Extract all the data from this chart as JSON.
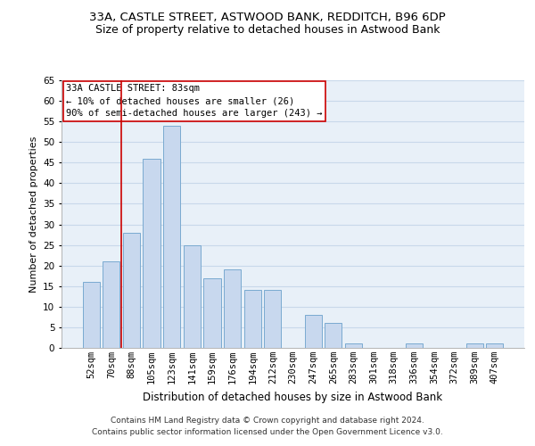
{
  "title1": "33A, CASTLE STREET, ASTWOOD BANK, REDDITCH, B96 6DP",
  "title2": "Size of property relative to detached houses in Astwood Bank",
  "xlabel": "Distribution of detached houses by size in Astwood Bank",
  "ylabel": "Number of detached properties",
  "categories": [
    "52sqm",
    "70sqm",
    "88sqm",
    "105sqm",
    "123sqm",
    "141sqm",
    "159sqm",
    "176sqm",
    "194sqm",
    "212sqm",
    "230sqm",
    "247sqm",
    "265sqm",
    "283sqm",
    "301sqm",
    "318sqm",
    "336sqm",
    "354sqm",
    "372sqm",
    "389sqm",
    "407sqm"
  ],
  "values": [
    16,
    21,
    28,
    46,
    54,
    25,
    17,
    19,
    14,
    14,
    0,
    8,
    6,
    1,
    0,
    0,
    1,
    0,
    0,
    1,
    1
  ],
  "bar_color": "#c8d8ee",
  "bar_edge_color": "#7aaad0",
  "bar_edge_width": 0.7,
  "annotation_line1": "33A CASTLE STREET: 83sqm",
  "annotation_line2": "← 10% of detached houses are smaller (26)",
  "annotation_line3": "90% of semi-detached houses are larger (243) →",
  "vline_color": "#cc0000",
  "vline_x_index": 1.5,
  "box_edge_color": "#cc0000",
  "ylim": [
    0,
    65
  ],
  "yticks": [
    0,
    5,
    10,
    15,
    20,
    25,
    30,
    35,
    40,
    45,
    50,
    55,
    60,
    65
  ],
  "grid_color": "#c8d8ea",
  "bg_color": "#e8f0f8",
  "footer": "Contains HM Land Registry data © Crown copyright and database right 2024.\nContains public sector information licensed under the Open Government Licence v3.0.",
  "title1_fontsize": 9.5,
  "title2_fontsize": 9,
  "xlabel_fontsize": 8.5,
  "ylabel_fontsize": 8,
  "tick_fontsize": 7.5,
  "annotation_fontsize": 7.5,
  "footer_fontsize": 6.5
}
